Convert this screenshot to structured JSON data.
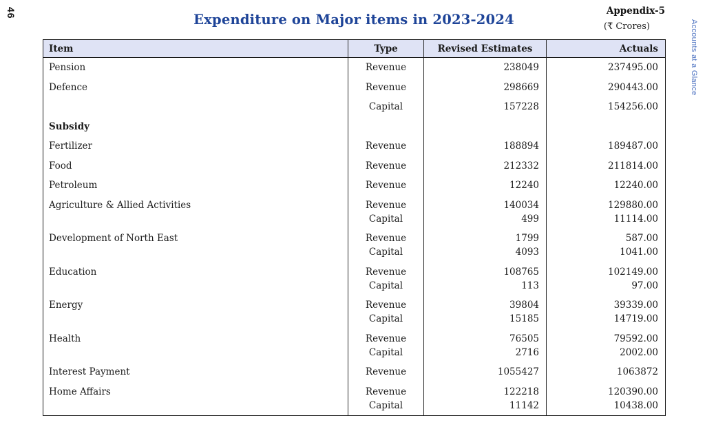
{
  "page": {
    "number": "46",
    "title": "Expenditure on Major items in 2023-2024",
    "appendix": "Appendix-5",
    "unit_note": "(₹ Crores)",
    "side_label": "Accounts at a Glance"
  },
  "colors": {
    "title_blue": "#1e4498",
    "header_bg": "#dfe3f5",
    "side_label_blue": "#4f74c2",
    "border": "#1a1a1a"
  },
  "table": {
    "columns": [
      "Item",
      "Type",
      "Revised Estimates",
      "Actuals"
    ],
    "groups": [
      {
        "item": "Pension",
        "bold": false,
        "lines": [
          {
            "type": "Revenue",
            "revised": "238049",
            "actuals": "237495.00"
          }
        ]
      },
      {
        "item": "Defence",
        "bold": false,
        "lines": [
          {
            "type": "Revenue",
            "revised": "298669",
            "actuals": "290443.00"
          }
        ]
      },
      {
        "item": "",
        "bold": false,
        "lines": [
          {
            "type": "Capital",
            "revised": "157228",
            "actuals": "154256.00"
          }
        ]
      },
      {
        "item": "Subsidy",
        "bold": true,
        "lines": []
      },
      {
        "item": "Fertilizer",
        "bold": false,
        "lines": [
          {
            "type": "Revenue",
            "revised": "188894",
            "actuals": "189487.00"
          }
        ]
      },
      {
        "item": "Food",
        "bold": false,
        "lines": [
          {
            "type": "Revenue",
            "revised": "212332",
            "actuals": "211814.00"
          }
        ]
      },
      {
        "item": "Petroleum",
        "bold": false,
        "lines": [
          {
            "type": "Revenue",
            "revised": "12240",
            "actuals": "12240.00"
          }
        ]
      },
      {
        "item": "Agriculture & Allied Activities",
        "bold": false,
        "lines": [
          {
            "type": "Revenue",
            "revised": "140034",
            "actuals": "129880.00"
          },
          {
            "type": "Capital",
            "revised": "499",
            "actuals": "11114.00"
          }
        ]
      },
      {
        "item": "Development of North East",
        "bold": false,
        "lines": [
          {
            "type": "Revenue",
            "revised": "1799",
            "actuals": "587.00"
          },
          {
            "type": "Capital",
            "revised": "4093",
            "actuals": "1041.00"
          }
        ]
      },
      {
        "item": "Education",
        "bold": false,
        "lines": [
          {
            "type": "Revenue",
            "revised": "108765",
            "actuals": "102149.00"
          },
          {
            "type": "Capital",
            "revised": "113",
            "actuals": "97.00"
          }
        ]
      },
      {
        "item": "Energy",
        "bold": false,
        "lines": [
          {
            "type": "Revenue",
            "revised": "39804",
            "actuals": "39339.00"
          },
          {
            "type": "Capital",
            "revised": "15185",
            "actuals": "14719.00"
          }
        ]
      },
      {
        "item": "Health",
        "bold": false,
        "lines": [
          {
            "type": "Revenue",
            "revised": "76505",
            "actuals": "79592.00"
          },
          {
            "type": "Capital",
            "revised": "2716",
            "actuals": "2002.00"
          }
        ]
      },
      {
        "item": "Interest Payment",
        "bold": false,
        "lines": [
          {
            "type": "Revenue",
            "revised": "1055427",
            "actuals": "1063872"
          }
        ]
      },
      {
        "item": "Home Affairs",
        "bold": false,
        "lines": [
          {
            "type": "Revenue",
            "revised": "122218",
            "actuals": "120390.00"
          },
          {
            "type": "Capital",
            "revised": "11142",
            "actuals": "10438.00"
          }
        ]
      }
    ]
  }
}
